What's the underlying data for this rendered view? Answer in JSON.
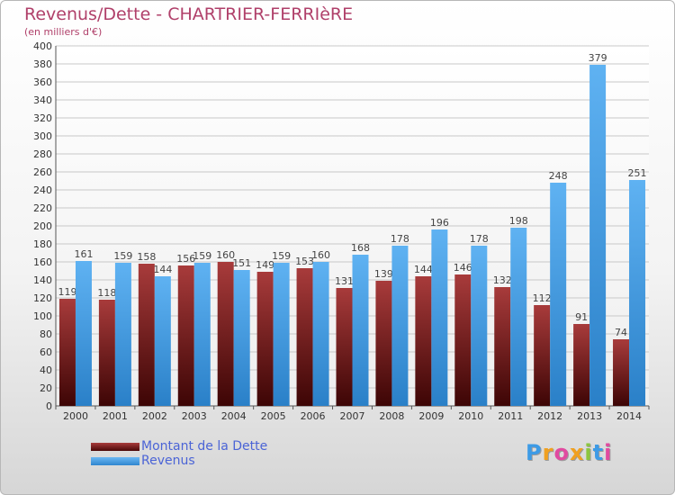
{
  "chart_data": {
    "type": "bar",
    "title": "Revenus/Dette - CHARTRIER-FERRIèRE",
    "subtitle": "(en milliers d'€)",
    "categories": [
      "2000",
      "2001",
      "2002",
      "2003",
      "2004",
      "2005",
      "2006",
      "2007",
      "2008",
      "2009",
      "2010",
      "2011",
      "2012",
      "2013",
      "2014"
    ],
    "series": [
      {
        "name": "Montant de la Dette",
        "color": "#7a1a1a",
        "values": [
          119,
          118,
          158,
          156,
          160,
          149,
          153,
          131,
          139,
          144,
          146,
          132,
          112,
          91,
          74
        ]
      },
      {
        "name": "Revenus",
        "color": "#3d9be6",
        "values": [
          161,
          159,
          144,
          159,
          151,
          159,
          160,
          168,
          178,
          196,
          178,
          198,
          248,
          379,
          251
        ]
      }
    ],
    "ylim": [
      0,
      400
    ],
    "ytick_step": 20,
    "grid": true,
    "legend": "bottom-left"
  },
  "brand": {
    "letters": [
      "P",
      "r",
      "o",
      "x",
      "i",
      "t",
      "i"
    ],
    "colors": [
      "#3d9be6",
      "#f0a020",
      "#e14aa0",
      "#f0a020",
      "#8cc63f",
      "#3d9be6",
      "#e14aa0"
    ]
  }
}
